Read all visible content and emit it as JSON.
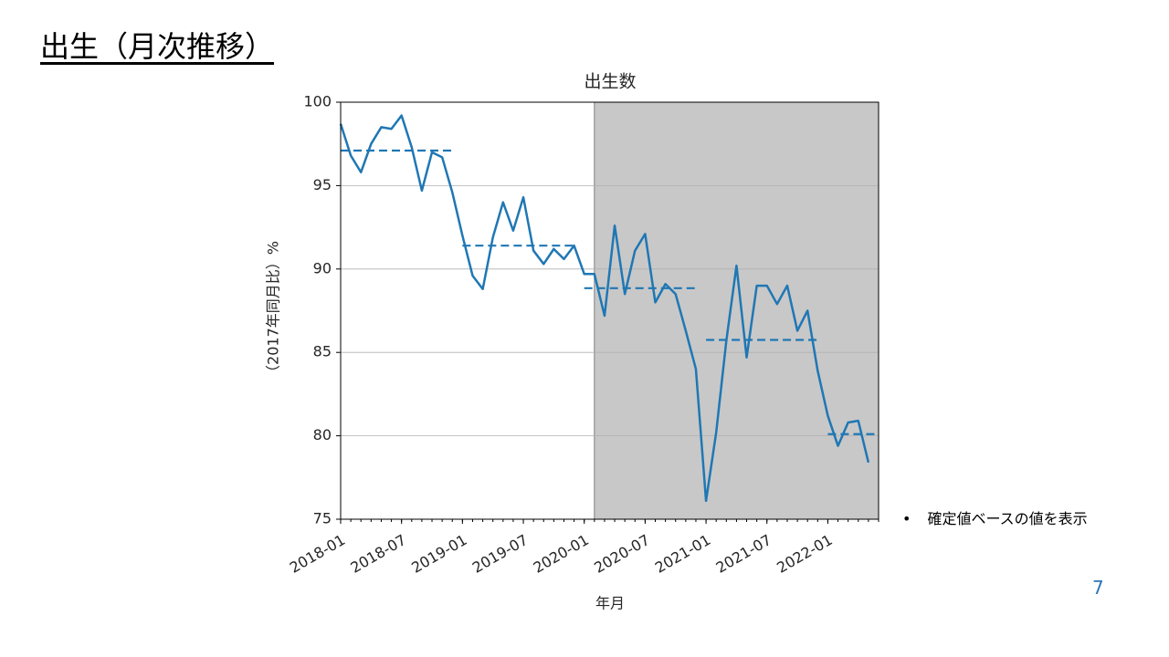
{
  "slide_title": "出生（月次推移）",
  "note": "確定値ベースの値を表示",
  "page_number": "7",
  "chart_data": {
    "type": "line",
    "title": "出生数",
    "x_label": "年月",
    "y_label": "（2017年同月比）%",
    "x": [
      "2018-01",
      "2018-02",
      "2018-03",
      "2018-04",
      "2018-05",
      "2018-06",
      "2018-07",
      "2018-08",
      "2018-09",
      "2018-10",
      "2018-11",
      "2018-12",
      "2019-01",
      "2019-02",
      "2019-03",
      "2019-04",
      "2019-05",
      "2019-06",
      "2019-07",
      "2019-08",
      "2019-09",
      "2019-10",
      "2019-11",
      "2019-12",
      "2020-01",
      "2020-02",
      "2020-03",
      "2020-04",
      "2020-05",
      "2020-06",
      "2020-07",
      "2020-08",
      "2020-09",
      "2020-10",
      "2020-11",
      "2020-12",
      "2021-01",
      "2021-02",
      "2021-03",
      "2021-04",
      "2021-05",
      "2021-06",
      "2021-07",
      "2021-08",
      "2021-09",
      "2021-10",
      "2021-11",
      "2021-12",
      "2022-01",
      "2022-02",
      "2022-03",
      "2022-04",
      "2022-05"
    ],
    "series": [
      {
        "color": "#1f77b4",
        "values": [
          98.7,
          96.8,
          95.8,
          97.5,
          98.5,
          98.4,
          99.2,
          97.3,
          94.7,
          97.0,
          96.7,
          94.6,
          92.0,
          89.6,
          88.8,
          91.9,
          94.0,
          92.3,
          94.3,
          91.1,
          90.3,
          91.2,
          90.6,
          91.4,
          89.7,
          89.7,
          87.2,
          92.6,
          88.5,
          91.1,
          92.1,
          88.0,
          89.1,
          88.5,
          86.3,
          84.0,
          76.1,
          80.2,
          85.7,
          90.2,
          84.7,
          89.0,
          89.0,
          87.9,
          89.0,
          86.3,
          87.5,
          83.9,
          81.2,
          79.4,
          80.8,
          80.9,
          78.4
        ]
      }
    ],
    "reference_lines": [
      {
        "from": "2018-01",
        "to": "2018-12",
        "value": 97.1
      },
      {
        "from": "2019-01",
        "to": "2019-12",
        "value": 91.4
      },
      {
        "from": "2020-01",
        "to": "2020-12",
        "value": 88.85
      },
      {
        "from": "2021-01",
        "to": "2021-12",
        "value": 85.75
      },
      {
        "from": "2022-01",
        "to": "2022-06",
        "value": 80.1
      }
    ],
    "reference_color": "#1f77b4",
    "shaded_from": "2020-02",
    "shade_color": "#c8c8c8",
    "xlim": [
      "2018-01",
      "2022-06"
    ],
    "xticks": [
      "2018-01",
      "2018-07",
      "2019-01",
      "2019-07",
      "2020-01",
      "2020-07",
      "2021-01",
      "2021-07",
      "2022-01"
    ],
    "ylim": [
      75,
      100
    ],
    "yticks": [
      75,
      80,
      85,
      90,
      95,
      100
    ],
    "grid": true
  }
}
